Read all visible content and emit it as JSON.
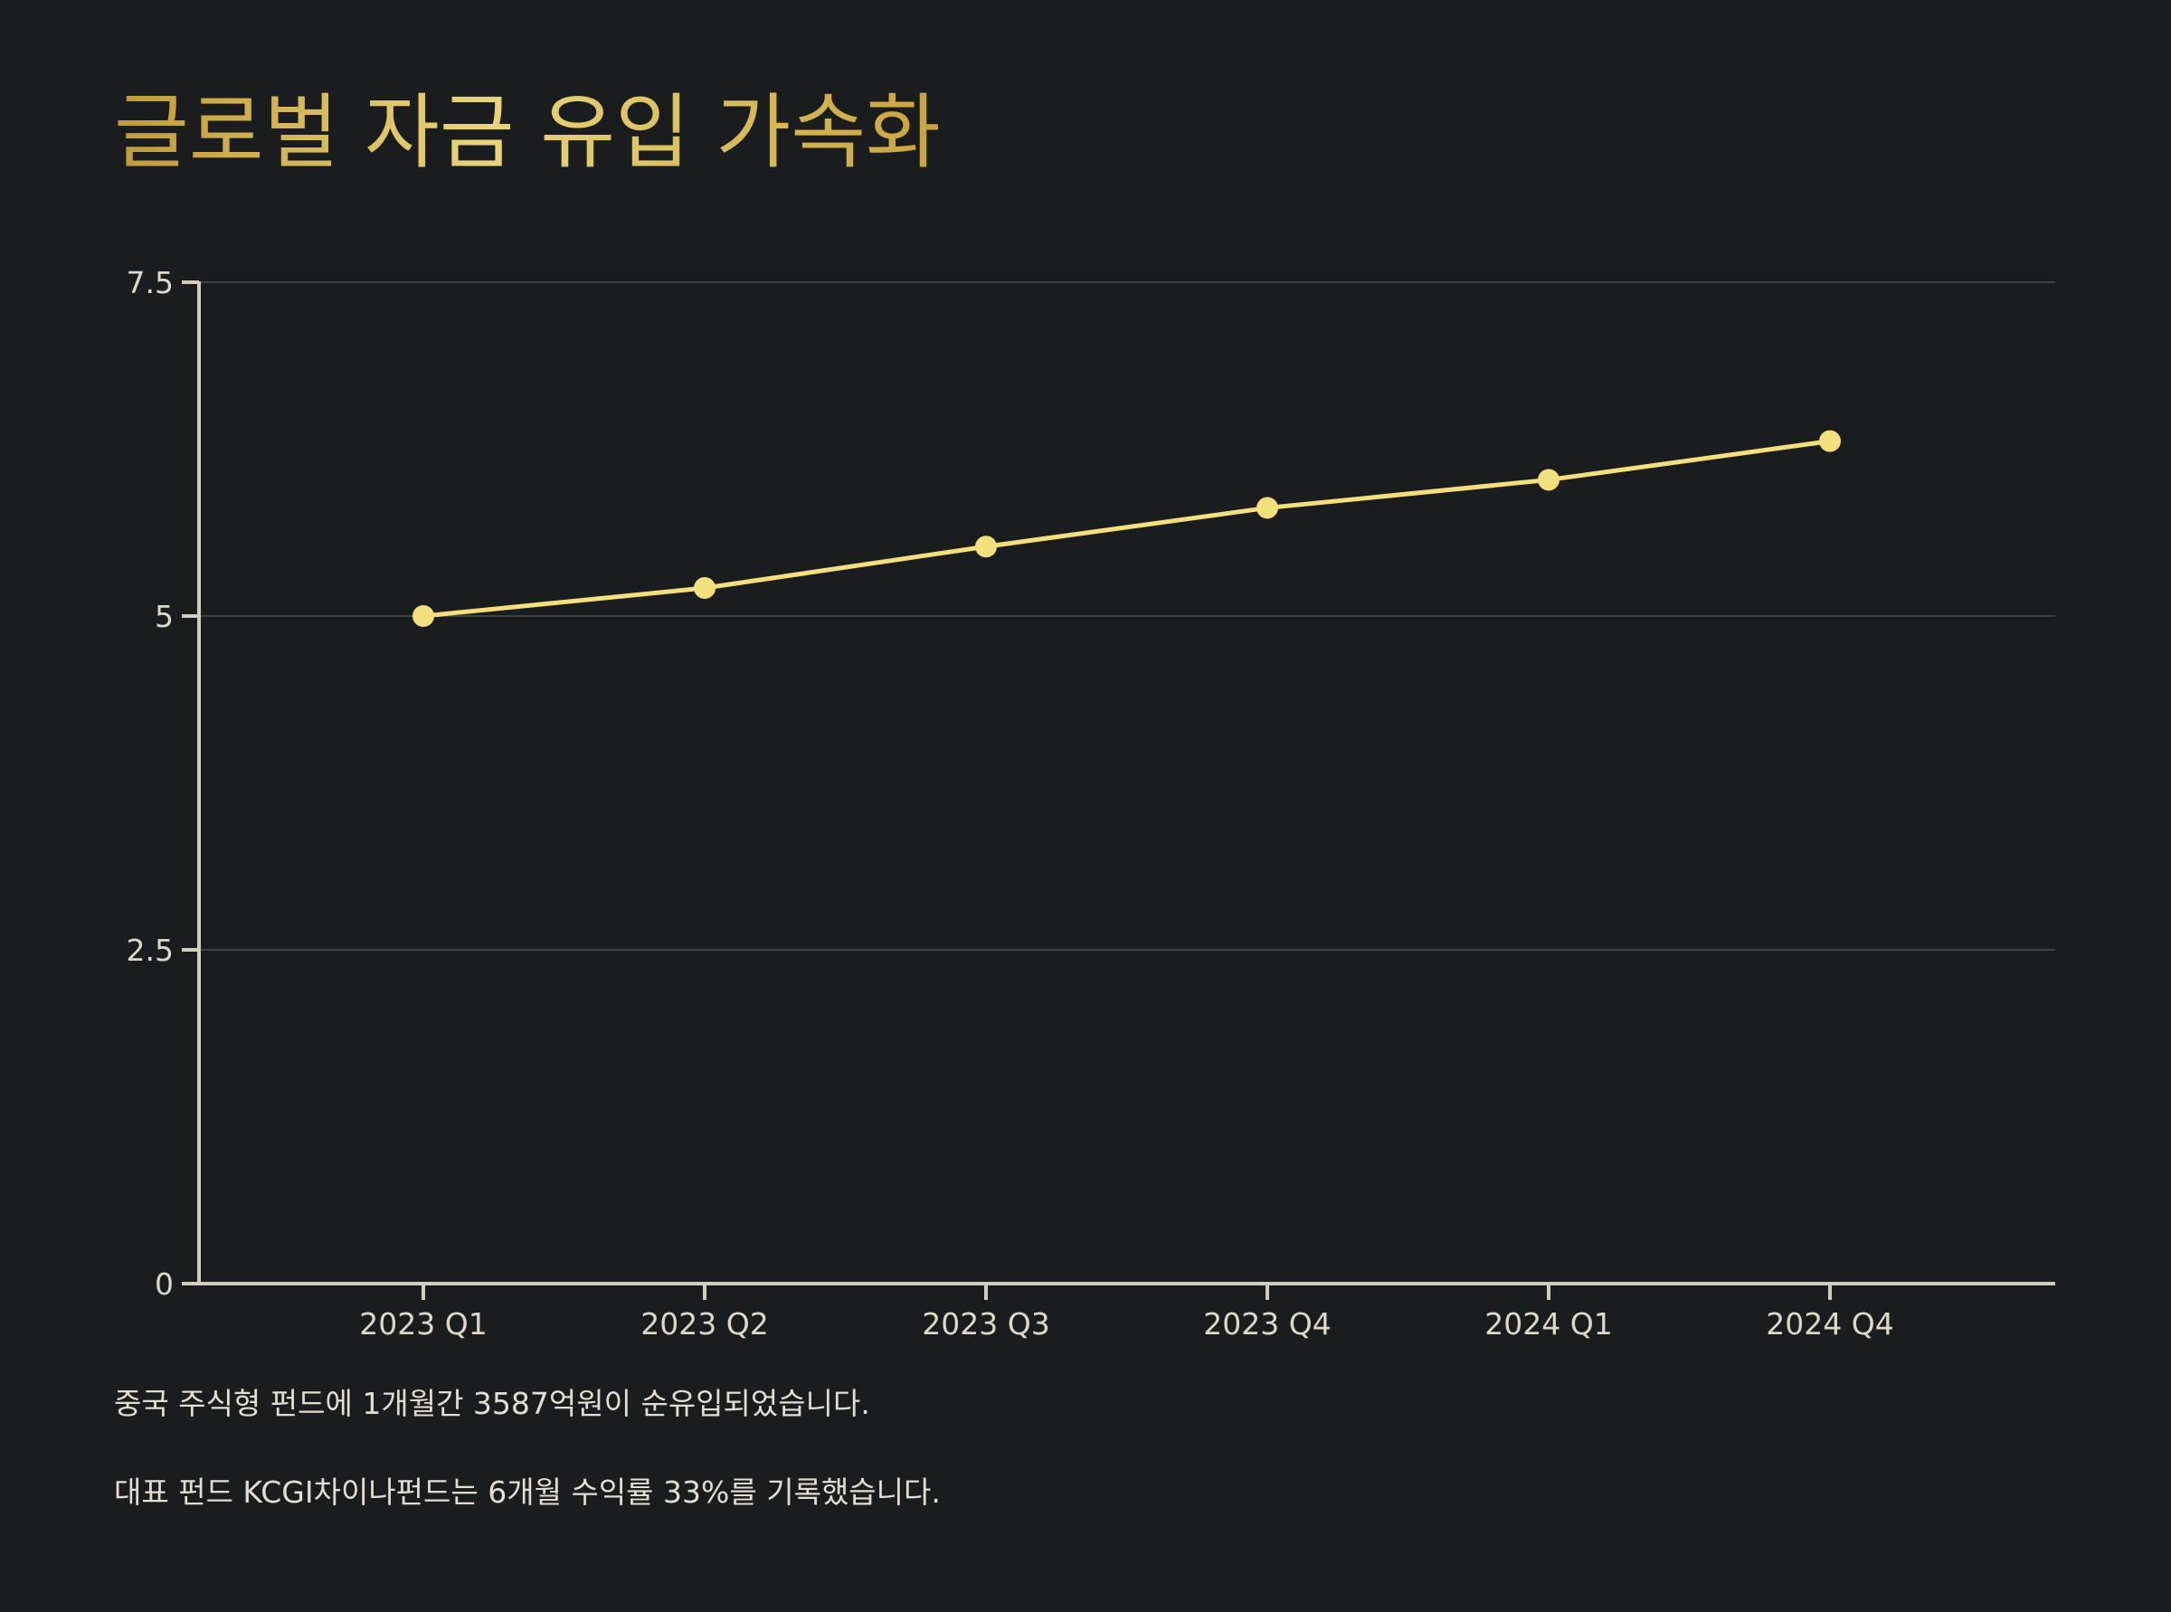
{
  "chart_data": {
    "type": "line",
    "title": "글로벌 자금 유입 가속화",
    "xlabel": "",
    "ylabel": "",
    "categories": [
      "2023 Q1",
      "2023 Q2",
      "2023 Q3",
      "2023 Q4",
      "2024 Q1",
      "2024 Q4"
    ],
    "series": [
      {
        "values": [
          5.0,
          5.21,
          5.52,
          5.81,
          6.02,
          6.31
        ]
      }
    ],
    "ylim": [
      0,
      7.5
    ],
    "yticks": [
      0,
      2.5,
      5,
      7.5
    ],
    "ytick_labels": [
      "0",
      "2.5",
      "5",
      "7.5"
    ],
    "grid": "horizontal",
    "legend": "none",
    "colors": {
      "background": "#1b1c1d",
      "line": "#f1e07c",
      "axis": "#d2cdc2",
      "grid": "#3f4041",
      "title_gradient": [
        "#c09a3a",
        "#e8d579",
        "#c9a440"
      ]
    }
  },
  "notes": [
    "중국 주식형 펀드에 1개월간 3587억원이 순유입되었습니다.",
    "대표 펀드 KCGI차이나펀드는 6개월 수익률 33%를 기록했습니다."
  ]
}
